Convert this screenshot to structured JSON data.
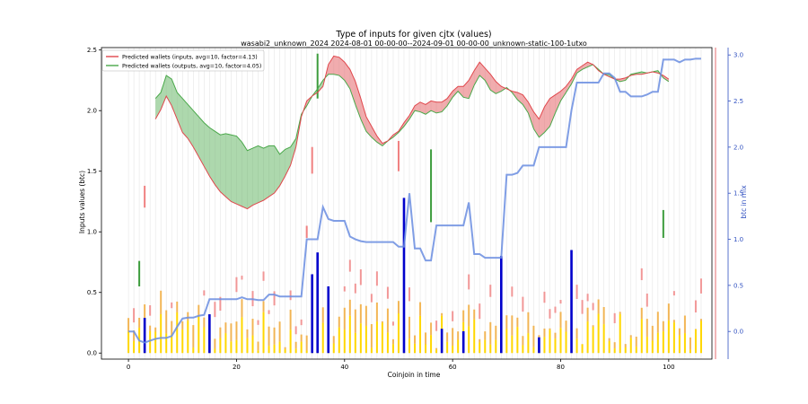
{
  "chart_data": {
    "type": "line",
    "title": "Type of inputs for given cjtx (values)",
    "subtitle": "wasabi2_unknown_2024 2024-08-01 00-00-00--2024-09-01 00-00-00_unknown-static-100-1utxo",
    "xlabel": "Coinjoin in time",
    "ylabel": "Inputs values (btc)",
    "y2label": "btc in mix",
    "xlim": [
      -5,
      108
    ],
    "ylim": [
      -0.05,
      2.52
    ],
    "y2lim": [
      -0.3,
      3.08
    ],
    "xticks": [
      0,
      20,
      40,
      60,
      80,
      100
    ],
    "yticks": [
      0.0,
      0.5,
      1.0,
      1.5,
      2.0,
      2.5
    ],
    "y2ticks": [
      0.0,
      0.5,
      1.0,
      1.5,
      2.0,
      2.5,
      3.0
    ],
    "grid": "vertical",
    "legend_position": "top-left",
    "colors": {
      "inputs": "#e0474c",
      "outputs": "#4aa84a",
      "mix": "#6a8de0",
      "bar_blue": "#0000cc",
      "bar_orange": "#f0a020",
      "bar_yellow": "#ffd700",
      "bar_red": "#f08080",
      "bar_green": "#3c9c3c"
    },
    "legend": [
      {
        "label": "Predicted wallets (inputs, avg=10, factor=4.13)",
        "color": "#e0474c"
      },
      {
        "label": "Predicted wallets (outputs, avg=10, factor=4.05)",
        "color": "#4aa84a"
      }
    ],
    "x": [
      5,
      6,
      7,
      8,
      9,
      10,
      11,
      12,
      13,
      14,
      15,
      16,
      17,
      18,
      19,
      20,
      21,
      22,
      23,
      24,
      25,
      26,
      27,
      28,
      29,
      30,
      31,
      32,
      33,
      34,
      35,
      36,
      37,
      38,
      39,
      40,
      41,
      42,
      43,
      44,
      45,
      46,
      47,
      48,
      49,
      50,
      51,
      52,
      53,
      54,
      55,
      56,
      57,
      58,
      59,
      60,
      61,
      62,
      63,
      64,
      65,
      66,
      67,
      68,
      69,
      70,
      71,
      72,
      73,
      74,
      75,
      76,
      77,
      78,
      79,
      80,
      81,
      82,
      83,
      84,
      85,
      86,
      87,
      88,
      89,
      90,
      91,
      92,
      93,
      94,
      95,
      96,
      97,
      98,
      99,
      100
    ],
    "series": [
      {
        "name": "Predicted wallets (inputs, avg=10, factor=4.13)",
        "values": [
          1.93,
          2.01,
          2.12,
          2.04,
          1.93,
          1.82,
          1.77,
          1.7,
          1.62,
          1.54,
          1.46,
          1.39,
          1.33,
          1.29,
          1.25,
          1.23,
          1.21,
          1.19,
          1.22,
          1.24,
          1.26,
          1.29,
          1.32,
          1.38,
          1.46,
          1.55,
          1.7,
          1.95,
          2.08,
          2.12,
          2.15,
          2.2,
          2.38,
          2.45,
          2.44,
          2.4,
          2.34,
          2.24,
          2.1,
          1.95,
          1.87,
          1.79,
          1.73,
          1.75,
          1.8,
          1.83,
          1.9,
          1.96,
          2.04,
          2.07,
          2.05,
          2.08,
          2.07,
          2.07,
          2.1,
          2.16,
          2.2,
          2.2,
          2.25,
          2.33,
          2.4,
          2.35,
          2.3,
          2.24,
          2.2,
          2.18,
          2.16,
          2.15,
          2.13,
          2.07,
          1.99,
          1.93,
          2.03,
          2.1,
          2.13,
          2.16,
          2.2,
          2.26,
          2.34,
          2.37,
          2.4,
          2.38,
          2.33,
          2.3,
          2.28,
          2.26,
          2.26,
          2.27,
          2.29,
          2.3,
          2.3,
          2.31,
          2.32,
          2.31,
          2.29,
          2.26
        ]
      },
      {
        "name": "Predicted wallets (outputs, avg=10, factor=4.05)",
        "values": [
          2.1,
          2.15,
          2.29,
          2.26,
          2.15,
          2.1,
          2.05,
          2.0,
          1.95,
          1.9,
          1.86,
          1.83,
          1.8,
          1.81,
          1.8,
          1.79,
          1.74,
          1.67,
          1.69,
          1.71,
          1.69,
          1.71,
          1.71,
          1.64,
          1.68,
          1.7,
          1.77,
          1.97,
          2.04,
          2.12,
          2.18,
          2.25,
          2.3,
          2.3,
          2.29,
          2.25,
          2.18,
          2.05,
          1.93,
          1.83,
          1.78,
          1.74,
          1.71,
          1.75,
          1.78,
          1.82,
          1.87,
          1.93,
          2.0,
          1.99,
          1.97,
          2.0,
          1.98,
          1.99,
          2.04,
          2.11,
          2.16,
          2.11,
          2.1,
          2.21,
          2.29,
          2.25,
          2.17,
          2.14,
          2.16,
          2.19,
          2.15,
          2.09,
          2.05,
          1.98,
          1.85,
          1.78,
          1.82,
          1.87,
          1.98,
          2.08,
          2.15,
          2.22,
          2.31,
          2.34,
          2.36,
          2.38,
          2.34,
          2.3,
          2.3,
          2.26,
          2.24,
          2.25,
          2.3,
          2.31,
          2.32,
          2.31,
          2.32,
          2.33,
          2.27,
          2.24
        ]
      },
      {
        "name": "btc in mix",
        "axis": "right",
        "x": [
          0,
          1,
          2,
          3,
          4,
          5,
          6,
          7,
          8,
          9,
          10,
          11,
          12,
          13,
          14,
          15,
          16,
          17,
          18,
          19,
          20,
          21,
          22,
          23,
          24,
          25,
          26,
          27,
          28,
          29,
          30,
          31,
          32,
          33,
          34,
          35,
          36,
          37,
          38,
          39,
          40,
          41,
          42,
          43,
          44,
          45,
          46,
          47,
          48,
          49,
          50,
          51,
          52,
          53,
          54,
          55,
          56,
          57,
          58,
          59,
          60,
          61,
          62,
          63,
          64,
          65,
          66,
          67,
          68,
          69,
          70,
          71,
          72,
          73,
          74,
          75,
          76,
          77,
          78,
          79,
          80,
          81,
          82,
          83,
          84,
          85,
          86,
          87,
          88,
          89,
          90,
          91,
          92,
          93,
          94,
          95,
          96,
          97,
          98,
          99,
          100,
          101,
          102,
          103,
          104,
          105,
          106
        ],
        "values": [
          0.0,
          0.0,
          -0.1,
          -0.12,
          -0.1,
          -0.08,
          -0.07,
          -0.07,
          -0.05,
          0.05,
          0.14,
          0.15,
          0.15,
          0.17,
          0.18,
          0.35,
          0.35,
          0.35,
          0.35,
          0.35,
          0.35,
          0.37,
          0.35,
          0.35,
          0.34,
          0.34,
          0.4,
          0.4,
          0.38,
          0.38,
          0.38,
          0.38,
          0.38,
          1.0,
          1.0,
          1.0,
          1.35,
          1.22,
          1.2,
          1.2,
          1.2,
          1.03,
          1.0,
          0.98,
          0.97,
          0.97,
          0.97,
          0.97,
          0.97,
          0.97,
          0.92,
          0.92,
          1.5,
          0.9,
          0.9,
          0.77,
          0.77,
          1.15,
          1.15,
          1.15,
          1.15,
          1.15,
          1.15,
          1.4,
          0.84,
          0.84,
          0.8,
          0.8,
          0.8,
          0.8,
          1.7,
          1.7,
          1.72,
          1.8,
          1.8,
          1.8,
          2.0,
          2.0,
          2.0,
          2.0,
          2.0,
          2.0,
          2.4,
          2.7,
          2.7,
          2.7,
          2.7,
          2.7,
          2.8,
          2.8,
          2.75,
          2.6,
          2.6,
          2.55,
          2.55,
          2.55,
          2.57,
          2.6,
          2.6,
          2.95,
          2.95,
          2.95,
          2.92,
          2.95,
          2.95,
          2.96,
          2.96
        ]
      }
    ]
  }
}
